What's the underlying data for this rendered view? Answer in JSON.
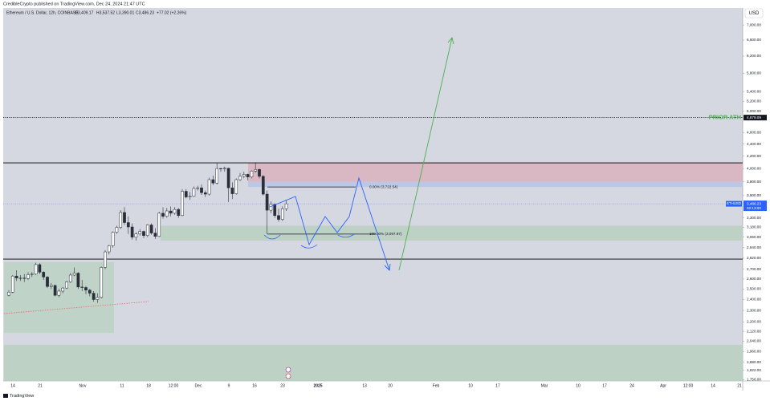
{
  "chart_data": {
    "type": "candlestick",
    "header": "CredibleCrypto published on TradingView.com, Dec 24, 2024 21:47 UTC",
    "legend": {
      "symbol": "Ethereum / U.S. Dollar, 12h, COINBASE",
      "open": "O3,409.17",
      "high": "H3,537.52",
      "low": "L3,390.01",
      "close": "C3,486.23",
      "change": "+77.02 (+2.26%)"
    },
    "currency": "USD",
    "footer": "TradingView",
    "log_scale": true,
    "ylim": [
      1747,
      7480
    ],
    "yticks": [
      {
        "value": 7000,
        "label": "7,000.00"
      },
      {
        "value": 6600,
        "label": "6,600.00"
      },
      {
        "value": 6200,
        "label": "6,200.00"
      },
      {
        "value": 5800,
        "label": "5,800.00"
      },
      {
        "value": 5400,
        "label": "5,400.00"
      },
      {
        "value": 5200,
        "label": "5,200.00"
      },
      {
        "value": 5000,
        "label": "5,000.00"
      },
      {
        "value": 4600,
        "label": "4,600.00"
      },
      {
        "value": 4400,
        "label": "4,400.00"
      },
      {
        "value": 4200,
        "label": "4,200.00"
      },
      {
        "value": 4000,
        "label": "4,000.00"
      },
      {
        "value": 3800,
        "label": "3,800.00"
      },
      {
        "value": 3600,
        "label": "3,600.00"
      },
      {
        "value": 3300,
        "label": "3,300.00"
      },
      {
        "value": 3180,
        "label": "3,180.00"
      },
      {
        "value": 3060,
        "label": "3,060.00"
      },
      {
        "value": 2940,
        "label": "2,940.00"
      },
      {
        "value": 2820,
        "label": "2,820.00"
      },
      {
        "value": 2700,
        "label": "2,700.00"
      },
      {
        "value": 2600,
        "label": "2,600.00"
      },
      {
        "value": 2500,
        "label": "2,500.00"
      },
      {
        "value": 2400,
        "label": "2,400.00"
      },
      {
        "value": 2300,
        "label": "2,300.00"
      },
      {
        "value": 2200,
        "label": "2,200.00"
      },
      {
        "value": 2120,
        "label": "2,120.00"
      },
      {
        "value": 2040,
        "label": "2,040.00"
      },
      {
        "value": 1960,
        "label": "1,960.00"
      },
      {
        "value": 1880,
        "label": "1,880.00"
      },
      {
        "value": 1822,
        "label": "1,822.00"
      },
      {
        "value": 1756,
        "label": "1,756.00"
      }
    ],
    "x_labels": [
      "14",
      "21",
      "Nov",
      "11",
      "18",
      "12:00",
      "Dec",
      "9",
      "16",
      "23",
      "2025",
      "13",
      "20",
      "Feb",
      "10",
      "17",
      "Mar",
      "10",
      "17",
      "24",
      "Apr",
      "12:00",
      "14",
      "21"
    ],
    "up_color": "#ffffff",
    "down_color": "#2a2e39",
    "ohlc": {
      "open": [
        2440,
        2470,
        2630,
        2610,
        2610,
        2605,
        2645,
        2650,
        2750,
        2670,
        2620,
        2525,
        2535,
        2440,
        2480,
        2510,
        2570,
        2640,
        2660,
        2520,
        2515,
        2490,
        2460,
        2400,
        2420,
        2720,
        2890,
        2960,
        3120,
        3180,
        3370,
        3240,
        3185,
        3060,
        3100,
        3130,
        3080,
        3210,
        3110,
        3070,
        3360,
        3320,
        3390,
        3360,
        3410,
        3330,
        3660,
        3580,
        3590,
        3700,
        3710,
        3640,
        3620,
        3830,
        3780,
        4000,
        3995,
        4005,
        3710,
        3625,
        3830,
        3880,
        3910,
        3870,
        3960,
        3985,
        3880,
        3620,
        3400,
        3480,
        3330,
        3280,
        3420
      ],
      "high": [
        2490,
        2640,
        2690,
        2640,
        2650,
        2670,
        2670,
        2770,
        2765,
        2680,
        2630,
        2560,
        2545,
        2500,
        2520,
        2580,
        2660,
        2720,
        2670,
        2590,
        2530,
        2500,
        2480,
        2460,
        2730,
        2910,
        2970,
        3130,
        3200,
        3400,
        3440,
        3320,
        3230,
        3120,
        3160,
        3140,
        3220,
        3230,
        3170,
        3380,
        3440,
        3430,
        3450,
        3440,
        3430,
        3690,
        3690,
        3650,
        3730,
        3740,
        3760,
        3670,
        3860,
        3890,
        4090,
        4010,
        4030,
        4010,
        3790,
        3850,
        3930,
        3950,
        3920,
        3970,
        4100,
        4000,
        3900,
        3670,
        3520,
        3490,
        3420,
        3450,
        3540
      ],
      "low": [
        2430,
        2460,
        2580,
        2580,
        2570,
        2590,
        2620,
        2640,
        2650,
        2590,
        2510,
        2500,
        2430,
        2420,
        2460,
        2500,
        2560,
        2630,
        2500,
        2480,
        2450,
        2430,
        2380,
        2370,
        2410,
        2700,
        2860,
        2940,
        3100,
        3160,
        3210,
        3100,
        3030,
        3020,
        3080,
        3050,
        3060,
        3090,
        3040,
        3060,
        3290,
        3300,
        3320,
        3340,
        3300,
        3320,
        3560,
        3540,
        3580,
        3670,
        3610,
        3580,
        3600,
        3750,
        3760,
        3950,
        3950,
        3510,
        3550,
        3610,
        3810,
        3850,
        3820,
        3850,
        3940,
        3850,
        3600,
        3100,
        3360,
        3300,
        3250,
        3260,
        3390
      ],
      "close": [
        2470,
        2630,
        2610,
        2610,
        2605,
        2645,
        2650,
        2750,
        2670,
        2620,
        2525,
        2535,
        2440,
        2480,
        2510,
        2570,
        2640,
        2660,
        2520,
        2515,
        2490,
        2460,
        2400,
        2420,
        2720,
        2890,
        2960,
        3120,
        3180,
        3370,
        3240,
        3185,
        3060,
        3100,
        3130,
        3080,
        3210,
        3110,
        3070,
        3360,
        3320,
        3390,
        3360,
        3410,
        3330,
        3660,
        3580,
        3590,
        3700,
        3710,
        3640,
        3620,
        3830,
        3780,
        4000,
        3995,
        4005,
        3710,
        3625,
        3830,
        3880,
        3910,
        3870,
        3960,
        3985,
        3880,
        3620,
        3400,
        3480,
        3330,
        3280,
        3420,
        3486
      ]
    },
    "zones": [
      {
        "top": 4090,
        "bottom": 3800,
        "color": "#d9b3bd"
      },
      {
        "top": 3800,
        "bottom": 3722.54,
        "color": "#b7c4e6"
      },
      {
        "top": 3200,
        "bottom": 3019,
        "color": "#b9d0bf"
      },
      {
        "top": 2776,
        "bottom": 2107,
        "color": "#bcd2c3"
      },
      {
        "top": 2011,
        "bottom": 1747,
        "color": "#b9d0bf"
      }
    ],
    "levels": [
      {
        "value": 4090,
        "color": "#000000"
      },
      {
        "value": 2810,
        "color": "#000000"
      }
    ],
    "fib": [
      {
        "value": 3722.54,
        "label": "0.00% (3,722.54)"
      },
      {
        "value": 3097.97,
        "label": "100.00% (3,097.97)"
      }
    ],
    "prior_ath": {
      "value": 4879.09,
      "label": "PRIOR ATH",
      "price_label": "4,879.09",
      "color": "#4caf50"
    },
    "last_price": {
      "value": 3486.23,
      "symbol": "ETHUSD",
      "price_label": "3,486.23",
      "countdown": "02:13:00",
      "color": "#2962ff"
    }
  }
}
